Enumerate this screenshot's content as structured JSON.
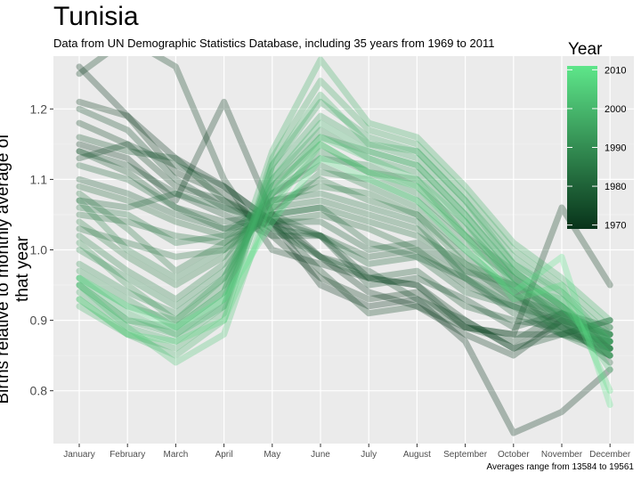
{
  "chart_data": {
    "type": "line",
    "title": "Tunisia",
    "subtitle": "Data from UN Demographic Statistics Database, including 35 years from 1969 to 2011",
    "caption": "Averages range from 13584 to 19561",
    "ylabel": "Births relative to monthly average of that year",
    "xlabel": "",
    "categories": [
      "January",
      "February",
      "March",
      "April",
      "May",
      "June",
      "July",
      "August",
      "September",
      "October",
      "November",
      "December"
    ],
    "ylim": [
      0.725,
      1.275
    ],
    "yticks": [
      0.8,
      0.9,
      1.0,
      1.1,
      1.2
    ],
    "ytick_labels": [
      "0.8",
      "0.9",
      "1.0",
      "1.1",
      "1.2"
    ],
    "legend": {
      "title": "Year",
      "placement": "right",
      "range": [
        1969,
        2011
      ],
      "ticks": [
        1970,
        1980,
        1990,
        2000,
        2010
      ],
      "tick_labels": [
        "1970",
        "1980",
        "1990",
        "2000",
        "2010"
      ],
      "color_low": "#08331a",
      "color_high": "#5ee68a"
    },
    "grid": true,
    "series": [
      {
        "year": 1969,
        "values": [
          1.26,
          1.19,
          1.13,
          1.09,
          1.04,
          0.95,
          0.92,
          0.93,
          0.87,
          0.74,
          0.77,
          0.83
        ]
      },
      {
        "year": 1970,
        "values": [
          1.15,
          1.13,
          1.07,
          1.21,
          1.05,
          0.99,
          0.94,
          0.92,
          0.88,
          0.85,
          0.9,
          0.86
        ]
      },
      {
        "year": 1971,
        "values": [
          1.21,
          1.19,
          1.11,
          1.08,
          1.02,
          0.96,
          0.93,
          0.94,
          0.89,
          0.88,
          1.06,
          0.95
        ]
      },
      {
        "year": 1972,
        "values": [
          1.25,
          1.3,
          1.26,
          1.1,
          1.0,
          0.98,
          0.96,
          0.95,
          0.9,
          0.86,
          0.9,
          0.88
        ]
      },
      {
        "year": 1973,
        "values": [
          1.18,
          1.15,
          1.09,
          1.07,
          1.04,
          0.97,
          0.91,
          0.92,
          0.89,
          0.87,
          0.91,
          0.89
        ]
      },
      {
        "year": 1974,
        "values": [
          1.13,
          1.15,
          1.12,
          1.09,
          1.04,
          1.02,
          0.96,
          0.95,
          0.89,
          0.88,
          0.88,
          0.87
        ]
      },
      {
        "year": 1975,
        "values": [
          1.2,
          1.17,
          1.1,
          1.06,
          1.04,
          0.99,
          0.97,
          0.93,
          0.9,
          0.86,
          0.88,
          0.9
        ]
      },
      {
        "year": 1976,
        "values": [
          1.14,
          1.12,
          1.08,
          1.05,
          1.02,
          1.02,
          0.95,
          0.96,
          0.93,
          0.89,
          0.91,
          0.87
        ]
      },
      {
        "year": 1977,
        "values": [
          1.16,
          1.14,
          1.13,
          1.07,
          1.03,
          0.99,
          0.96,
          0.97,
          0.92,
          0.9,
          0.89,
          0.85
        ]
      },
      {
        "year": 1978,
        "values": [
          1.14,
          1.11,
          1.06,
          1.04,
          1.05,
          1.02,
          0.99,
          1.0,
          0.95,
          0.92,
          0.9,
          0.84
        ]
      },
      {
        "year": 1979,
        "values": [
          1.1,
          1.08,
          1.05,
          1.03,
          1.04,
          1.04,
          1.0,
          1.01,
          0.97,
          0.94,
          0.89,
          0.86
        ]
      },
      {
        "year": 1980,
        "values": [
          1.07,
          1.06,
          1.08,
          1.06,
          1.03,
          1.02,
          0.98,
          0.99,
          0.96,
          0.91,
          0.88,
          0.9
        ]
      },
      {
        "year": 1981,
        "values": [
          1.12,
          1.1,
          1.06,
          1.03,
          1.05,
          1.06,
          1.01,
          0.99,
          0.94,
          0.92,
          0.88,
          0.86
        ]
      },
      {
        "year": 1982,
        "values": [
          1.09,
          1.07,
          1.04,
          1.02,
          1.04,
          1.05,
          1.03,
          1.0,
          0.96,
          0.93,
          0.89,
          0.85
        ]
      },
      {
        "year": 1983,
        "values": [
          1.05,
          1.04,
          1.02,
          1.01,
          1.05,
          1.06,
          1.04,
          1.02,
          0.98,
          0.93,
          0.91,
          0.86
        ]
      },
      {
        "year": 1984,
        "values": [
          1.03,
          1.01,
          0.99,
          1.0,
          1.06,
          1.07,
          1.05,
          1.03,
          0.97,
          0.95,
          0.9,
          0.88
        ]
      },
      {
        "year": 1985,
        "values": [
          1.06,
          1.05,
          1.01,
          1.02,
          1.07,
          1.08,
          1.06,
          1.04,
          0.96,
          0.92,
          0.89,
          0.87
        ]
      },
      {
        "year": 1986,
        "values": [
          1.08,
          1.03,
          0.97,
          1.01,
          1.06,
          1.1,
          1.07,
          1.05,
          0.99,
          0.94,
          0.88,
          0.85
        ]
      },
      {
        "year": 1987,
        "values": [
          1.04,
          0.99,
          0.95,
          0.99,
          1.07,
          1.09,
          1.08,
          1.05,
          0.98,
          0.95,
          0.91,
          0.88
        ]
      },
      {
        "year": 1988,
        "values": [
          1.02,
          0.97,
          0.93,
          0.98,
          1.08,
          1.12,
          1.09,
          1.06,
          1.0,
          0.94,
          0.9,
          0.86
        ]
      },
      {
        "year": 1989,
        "values": [
          1.07,
          1.0,
          0.96,
          1.0,
          1.05,
          1.11,
          1.1,
          1.07,
          1.01,
          0.96,
          0.92,
          0.87
        ]
      },
      {
        "year": 1990,
        "values": [
          1.0,
          0.96,
          0.92,
          0.97,
          1.07,
          1.14,
          1.11,
          1.08,
          1.02,
          0.95,
          0.91,
          0.88
        ]
      },
      {
        "year": 1991,
        "values": [
          0.98,
          0.94,
          0.91,
          0.96,
          1.08,
          1.13,
          1.12,
          1.09,
          1.03,
          0.96,
          0.9,
          0.87
        ]
      },
      {
        "year": 1992,
        "values": [
          1.01,
          0.95,
          0.9,
          0.95,
          1.09,
          1.15,
          1.11,
          1.1,
          1.02,
          0.97,
          0.92,
          0.86
        ]
      },
      {
        "year": 1993,
        "values": [
          0.97,
          0.93,
          0.89,
          0.94,
          1.1,
          1.17,
          1.13,
          1.11,
          1.04,
          0.96,
          0.91,
          0.85
        ]
      },
      {
        "year": 1994,
        "values": [
          0.96,
          0.92,
          0.9,
          0.96,
          1.09,
          1.16,
          1.14,
          1.12,
          1.05,
          0.97,
          0.92,
          0.86
        ]
      },
      {
        "year": 1995,
        "values": [
          0.95,
          0.9,
          0.88,
          0.93,
          1.11,
          1.19,
          1.15,
          1.13,
          1.06,
          0.98,
          0.93,
          0.87
        ]
      },
      {
        "year": 1996,
        "values": [
          0.94,
          0.89,
          0.87,
          0.92,
          1.12,
          1.21,
          1.16,
          1.14,
          1.07,
          0.99,
          0.94,
          0.88
        ]
      },
      {
        "year": 1997,
        "values": [
          0.93,
          0.88,
          0.86,
          0.91,
          1.13,
          1.24,
          1.17,
          1.15,
          1.08,
          1.0,
          0.95,
          0.89
        ]
      },
      {
        "year": 1998,
        "values": [
          0.95,
          0.9,
          0.89,
          0.94,
          1.14,
          1.27,
          1.18,
          1.16,
          1.09,
          1.01,
          0.96,
          0.9
        ]
      },
      {
        "year": 1999,
        "values": [
          0.92,
          0.88,
          0.85,
          0.9,
          1.12,
          1.22,
          1.15,
          1.14,
          1.07,
          0.98,
          0.94,
          0.87
        ]
      },
      {
        "year": 2000,
        "values": [
          0.96,
          0.91,
          0.88,
          0.92,
          1.1,
          1.18,
          1.14,
          1.12,
          1.05,
          0.97,
          0.92,
          0.85
        ]
      },
      {
        "year": 2004,
        "values": [
          0.95,
          0.89,
          0.84,
          0.88,
          1.08,
          1.16,
          1.13,
          1.1,
          1.04,
          0.95,
          0.93,
          0.83
        ]
      },
      {
        "year": 2008,
        "values": [
          0.93,
          0.88,
          0.87,
          0.9,
          1.06,
          1.15,
          1.11,
          1.09,
          1.02,
          0.93,
          0.95,
          0.8
        ]
      },
      {
        "year": 2011,
        "values": [
          0.96,
          0.92,
          0.89,
          0.93,
          1.04,
          1.13,
          1.1,
          1.07,
          1.0,
          0.94,
          0.99,
          0.78
        ]
      }
    ]
  }
}
